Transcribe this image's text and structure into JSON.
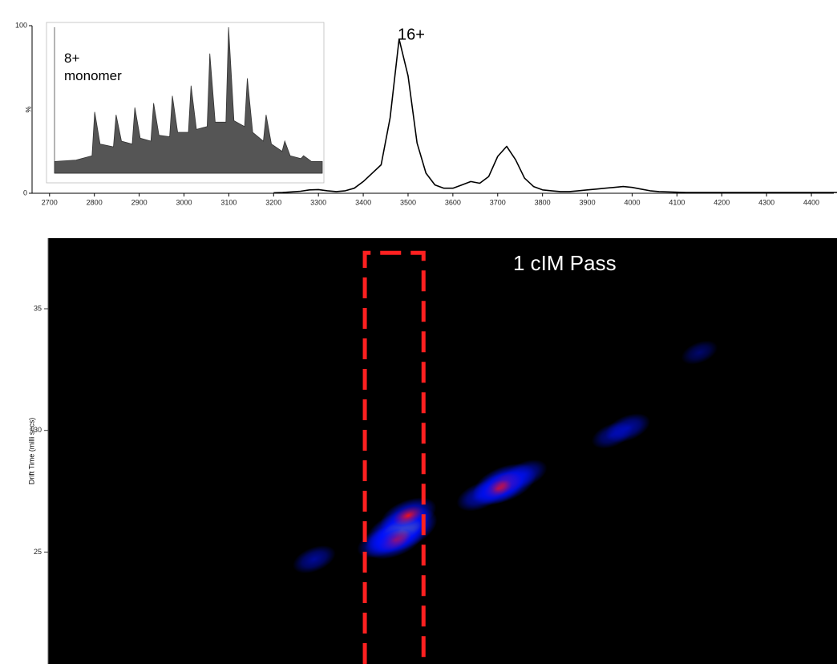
{
  "chart_data": [
    {
      "type": "line",
      "ylabel": "%",
      "annotation": "16+",
      "xlim": [
        2661,
        4450
      ],
      "ylim": [
        0,
        100
      ],
      "xticks": [
        2700,
        2800,
        2900,
        3000,
        3100,
        3200,
        3300,
        3400,
        3500,
        3600,
        3700,
        3800,
        3900,
        4000,
        4100,
        4200,
        4300,
        4400
      ],
      "yticks": [
        0,
        100
      ],
      "series": [
        {
          "color": "#000000",
          "x": [
            3200,
            3220,
            3240,
            3260,
            3280,
            3300,
            3320,
            3340,
            3360,
            3380,
            3400,
            3420,
            3440,
            3460,
            3480,
            3500,
            3520,
            3540,
            3560,
            3580,
            3600,
            3620,
            3640,
            3660,
            3680,
            3700,
            3720,
            3740,
            3760,
            3780,
            3800,
            3820,
            3840,
            3860,
            3880,
            3900,
            3920,
            3940,
            3960,
            3980,
            4000,
            4020,
            4040,
            4060,
            4080,
            4100,
            4120,
            4140,
            4160,
            4180,
            4200,
            4220,
            4240,
            4260,
            4280,
            4300,
            4320,
            4340,
            4360,
            4380,
            4400,
            4420,
            4440,
            4460,
            4480
          ],
          "values": [
            0.3,
            0.5,
            0.8,
            1.2,
            2,
            2.2,
            1.5,
            1,
            1.5,
            3,
            7,
            12,
            17,
            45,
            92,
            70,
            30,
            12,
            5,
            3,
            3,
            5,
            7,
            6,
            10,
            22,
            28,
            20,
            9,
            4,
            2,
            1.5,
            1,
            1,
            1.5,
            2,
            2.5,
            3,
            3.5,
            4,
            3.5,
            2.5,
            1.5,
            1,
            0.8,
            0.6,
            0.5,
            0.5,
            0.5,
            0.5,
            0.5,
            0.5,
            0.5,
            0.5,
            0.5,
            0.5,
            0.5,
            0.5,
            0.5,
            0.5,
            0.5,
            0.5,
            0.5,
            0.5,
            0.5
          ]
        }
      ]
    },
    {
      "type": "area",
      "annotation": [
        "8+",
        "monomer"
      ],
      "xlim": [
        0,
        100
      ],
      "ylim": [
        0,
        100
      ],
      "series": [
        {
          "color": "#555555",
          "x": [
            0,
            8,
            14,
            15,
            17,
            22,
            23,
            25,
            29,
            30,
            32,
            36,
            37,
            39,
            43,
            44,
            46,
            50,
            51,
            53,
            57,
            58,
            60,
            64,
            65,
            67,
            71,
            72,
            74,
            78,
            79,
            81,
            85,
            86,
            88,
            92,
            93,
            96,
            100
          ],
          "values": [
            8,
            9,
            12,
            42,
            20,
            18,
            40,
            22,
            20,
            45,
            24,
            22,
            48,
            26,
            25,
            53,
            28,
            28,
            60,
            30,
            32,
            82,
            35,
            35,
            100,
            36,
            32,
            65,
            28,
            22,
            40,
            20,
            15,
            22,
            12,
            10,
            12,
            8,
            8
          ]
        }
      ]
    },
    {
      "type": "heatmap",
      "ylabel": "Drift Time (milli secs)",
      "annotation": "1 cIM Pass",
      "xlim": [
        2696,
        4457
      ],
      "ylim": [
        20.4,
        37.9
      ],
      "yticks": [
        25,
        30,
        35
      ],
      "colormap": [
        "#0010ff",
        "#ff1010",
        "#ffff30"
      ],
      "highlight": {
        "x": [
          3403,
          3534
        ],
        "y": 37.3,
        "color": "#ff2020"
      },
      "series": [
        {
          "x": [
            3485,
            3470,
            3440,
            3500,
            3290,
            3715,
            3700,
            3660,
            3760,
            3990,
            3955,
            4150
          ],
          "y": [
            25.9,
            25.5,
            25.4,
            26.5,
            24.7,
            27.8,
            27.6,
            27.3,
            28.2,
            30.1,
            29.8,
            33.2
          ],
          "intensity": [
            100,
            70,
            40,
            60,
            25,
            80,
            50,
            35,
            30,
            30,
            20,
            8
          ]
        }
      ]
    }
  ]
}
